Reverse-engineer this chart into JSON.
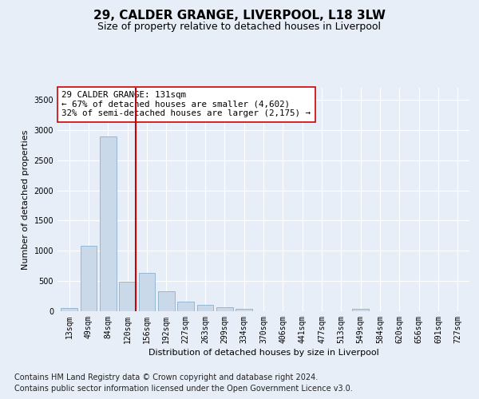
{
  "title1": "29, CALDER GRANGE, LIVERPOOL, L18 3LW",
  "title2": "Size of property relative to detached houses in Liverpool",
  "xlabel": "Distribution of detached houses by size in Liverpool",
  "ylabel": "Number of detached properties",
  "annotation_line1": "29 CALDER GRANGE: 131sqm",
  "annotation_line2": "← 67% of detached houses are smaller (4,602)",
  "annotation_line3": "32% of semi-detached houses are larger (2,175) →",
  "footnote1": "Contains HM Land Registry data © Crown copyright and database right 2024.",
  "footnote2": "Contains public sector information licensed under the Open Government Licence v3.0.",
  "bar_labels": [
    "13sqm",
    "49sqm",
    "84sqm",
    "120sqm",
    "156sqm",
    "192sqm",
    "227sqm",
    "263sqm",
    "299sqm",
    "334sqm",
    "370sqm",
    "406sqm",
    "441sqm",
    "477sqm",
    "513sqm",
    "549sqm",
    "584sqm",
    "620sqm",
    "656sqm",
    "691sqm",
    "727sqm"
  ],
  "bar_values": [
    50,
    1080,
    2900,
    490,
    640,
    330,
    165,
    105,
    60,
    40,
    0,
    0,
    0,
    0,
    0,
    40,
    0,
    0,
    0,
    0,
    0
  ],
  "bar_color": "#c9d9ea",
  "bar_edgecolor": "#8ab0cc",
  "redline_index": 3,
  "ylim": [
    0,
    3700
  ],
  "yticks": [
    0,
    500,
    1000,
    1500,
    2000,
    2500,
    3000,
    3500
  ],
  "bg_color": "#e8eef8",
  "grid_color": "#ffffff",
  "redline_color": "#cc0000",
  "title1_fontsize": 11,
  "title2_fontsize": 9,
  "annotation_fontsize": 7.8,
  "axis_label_fontsize": 8,
  "tick_fontsize": 7,
  "footnote_fontsize": 7
}
